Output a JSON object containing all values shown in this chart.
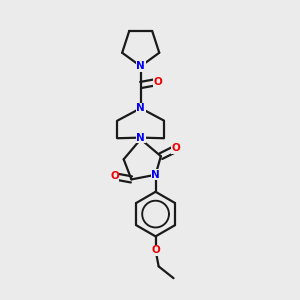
{
  "bg_color": "#ebebeb",
  "bond_color": "#1a1a1a",
  "N_color": "#0000ee",
  "O_color": "#ee0000",
  "line_width": 1.6,
  "figsize": [
    3.0,
    3.0
  ],
  "dpi": 100,
  "xlim": [
    0.25,
    0.85
  ],
  "ylim": [
    0.02,
    0.98
  ]
}
